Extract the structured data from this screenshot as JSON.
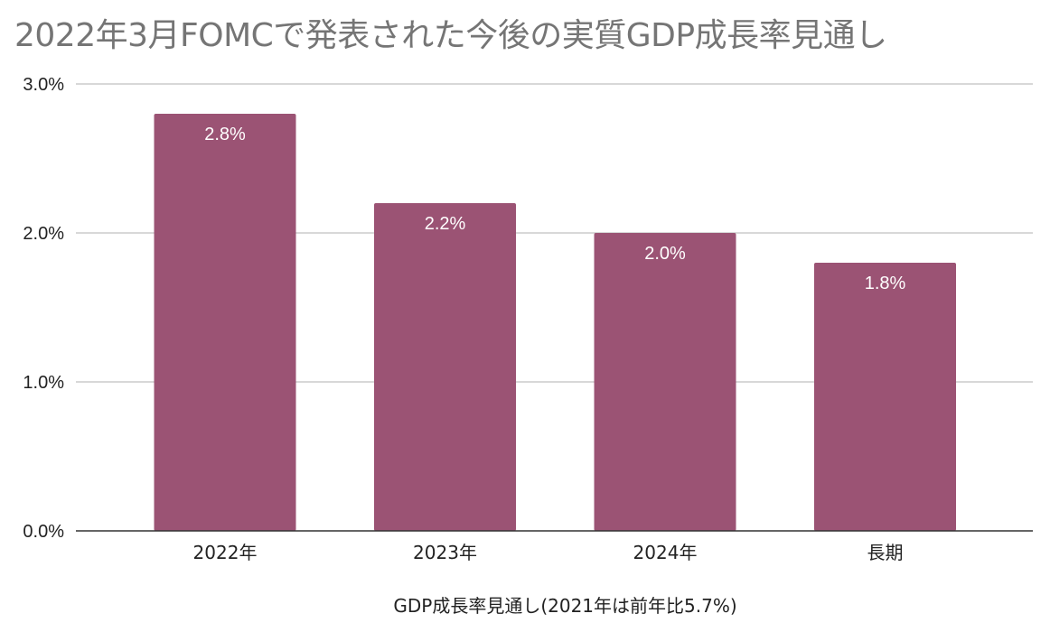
{
  "chart_data": {
    "type": "bar",
    "title": "2022年3月FOMCで発表された今後の実質GDP成長率見通し",
    "xlabel": "GDP成長率見通し(2021年は前年比5.7%)",
    "ylabel": "",
    "categories": [
      "2022年",
      "2023年",
      "2024年",
      "長期"
    ],
    "series": [
      {
        "values": [
          2.8,
          2.2,
          2.0,
          1.8
        ]
      }
    ],
    "data_labels": [
      "2.8%",
      "2.2%",
      "2.0%",
      "1.8%"
    ],
    "ylim": [
      0,
      3.0
    ],
    "yticks": [
      0,
      1.0,
      2.0,
      3.0
    ],
    "ytick_labels": [
      "0.0%",
      "1.0%",
      "2.0%",
      "3.0%"
    ],
    "grid": true,
    "legend": "none",
    "colors": {
      "bar": "#9b5374",
      "grid": "#cccccc",
      "axis": "#333333",
      "title": "#757575"
    }
  }
}
